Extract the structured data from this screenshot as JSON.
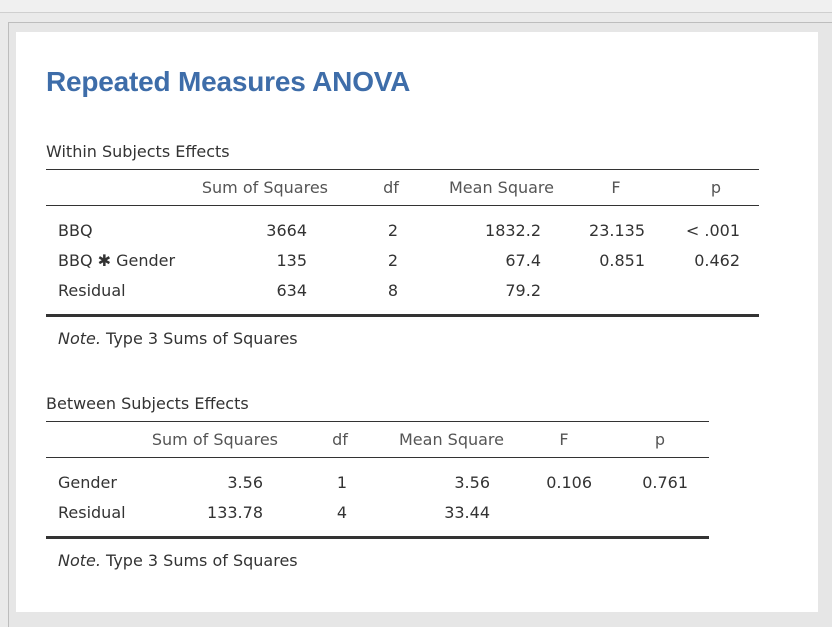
{
  "title": "Repeated Measures ANOVA",
  "within": {
    "section_title": "Within Subjects Effects",
    "headers": [
      "Sum of Squares",
      "df",
      "Mean Square",
      "F",
      "p"
    ],
    "rows": [
      {
        "label": "BBQ",
        "ss": "3664",
        "df": "2",
        "ms": "1832.2",
        "f": "23.135",
        "p": "< .001"
      },
      {
        "label": "BBQ ✱ Gender",
        "ss": "135",
        "df": "2",
        "ms": "67.4",
        "f": "0.851",
        "p": "0.462"
      },
      {
        "label": "Residual",
        "ss": "634",
        "df": "8",
        "ms": "79.2",
        "f": "",
        "p": ""
      }
    ],
    "note_label": "Note.",
    "note_text": " Type 3 Sums of Squares"
  },
  "between": {
    "section_title": "Between Subjects Effects",
    "headers": [
      "Sum of Squares",
      "df",
      "Mean Square",
      "F",
      "p"
    ],
    "rows": [
      {
        "label": "Gender",
        "ss": "3.56",
        "df": "1",
        "ms": "3.56",
        "f": "0.106",
        "p": "0.761"
      },
      {
        "label": "Residual",
        "ss": "133.78",
        "df": "4",
        "ms": "33.44",
        "f": "",
        "p": ""
      }
    ],
    "note_label": "Note.",
    "note_text": " Type 3 Sums of Squares"
  }
}
